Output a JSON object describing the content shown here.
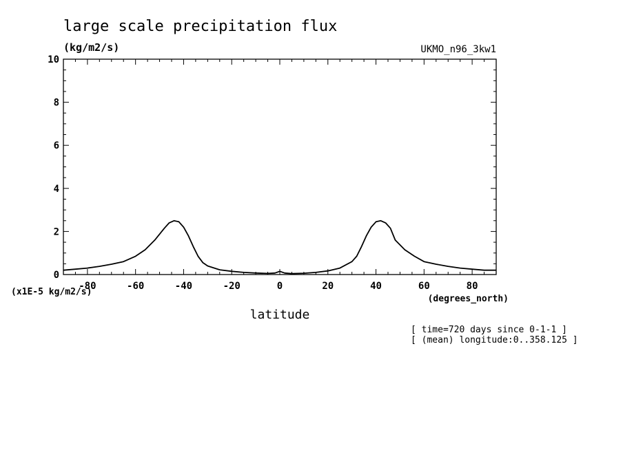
{
  "chart_data": {
    "type": "line",
    "title": "large scale precipitation flux",
    "units_label": "(kg/m2/s)",
    "dataset_label": "UKMO_n96_3kw1",
    "scale_label": "(x1E-5 kg/m2/s)",
    "xlabel": "latitude",
    "x_units_label": "(degrees_north)",
    "xlim": [
      -90,
      90
    ],
    "ylim": [
      0,
      10
    ],
    "x_ticks": [
      -80,
      -60,
      -40,
      -20,
      0,
      20,
      40,
      60,
      80
    ],
    "x_tick_labels": [
      "-80",
      "-60",
      "-40",
      "-20",
      "0",
      "20",
      "40",
      "60",
      "80"
    ],
    "y_ticks": [
      0,
      2,
      4,
      6,
      8,
      10
    ],
    "y_tick_labels": [
      "0",
      "2",
      "4",
      "6",
      "8",
      "10"
    ],
    "line_color": "#000000",
    "series": [
      {
        "name": "large scale precipitation flux",
        "x": [
          -90,
          -85,
          -80,
          -75,
          -70,
          -65,
          -60,
          -56,
          -52,
          -48,
          -46,
          -44,
          -42,
          -40,
          -38,
          -36,
          -34,
          -32,
          -30,
          -25,
          -20,
          -15,
          -10,
          -5,
          -2,
          0,
          2,
          5,
          10,
          15,
          20,
          25,
          30,
          32,
          34,
          36,
          38,
          40,
          42,
          44,
          46,
          48,
          52,
          56,
          60,
          65,
          70,
          75,
          80,
          85,
          90
        ],
        "y": [
          0.2,
          0.25,
          0.3,
          0.38,
          0.48,
          0.6,
          0.85,
          1.15,
          1.6,
          2.15,
          2.4,
          2.5,
          2.45,
          2.2,
          1.8,
          1.3,
          0.85,
          0.55,
          0.4,
          0.22,
          0.15,
          0.1,
          0.07,
          0.05,
          0.07,
          0.15,
          0.07,
          0.04,
          0.06,
          0.1,
          0.17,
          0.3,
          0.6,
          0.85,
          1.3,
          1.8,
          2.2,
          2.45,
          2.5,
          2.4,
          2.15,
          1.6,
          1.15,
          0.85,
          0.6,
          0.48,
          0.38,
          0.3,
          0.25,
          0.2,
          0.2
        ]
      }
    ]
  },
  "annotations": {
    "time": "[ time=720 days since 0-1-1 ]",
    "longitude": "[ (mean) longitude:0..358.125 ]"
  }
}
